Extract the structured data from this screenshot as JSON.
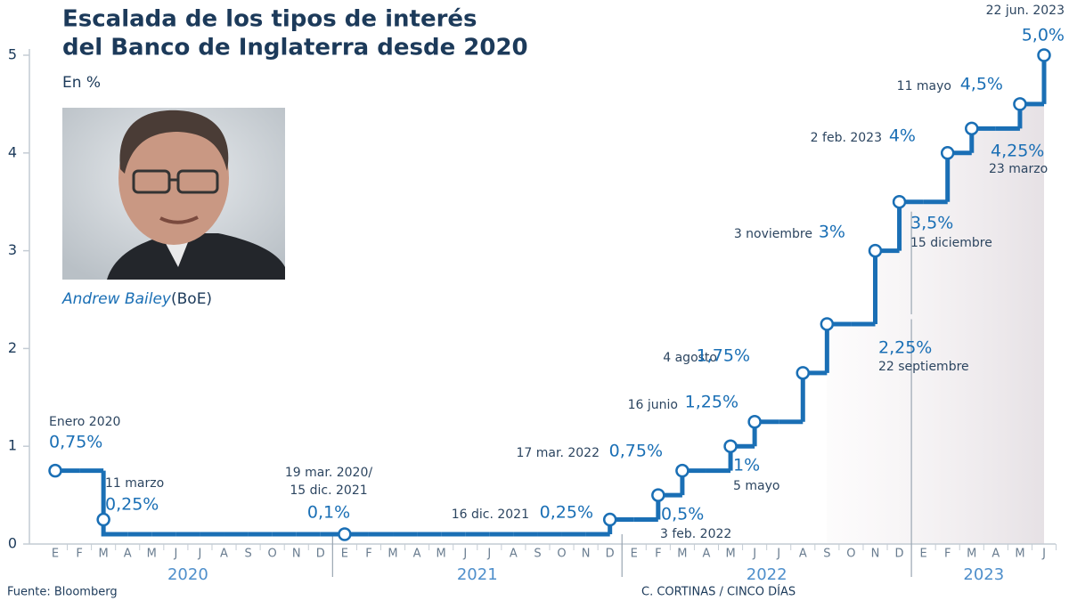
{
  "chart_data": {
    "type": "line",
    "step": true,
    "title": [
      "Escalada de los tipos de interés",
      "del Banco de Inglaterra desde 2020"
    ],
    "subtitle": "En %",
    "photo_caption": {
      "name": "Andrew Bailey",
      "org": "(BoE)"
    },
    "categories": [
      "E",
      "F",
      "M",
      "A",
      "M",
      "J",
      "J",
      "A",
      "S",
      "O",
      "N",
      "D",
      "E",
      "F",
      "M",
      "A",
      "M",
      "J",
      "J",
      "A",
      "S",
      "O",
      "N",
      "D",
      "E",
      "F",
      "M",
      "A",
      "M",
      "J",
      "J",
      "A",
      "S",
      "O",
      "N",
      "D",
      "E",
      "F",
      "M",
      "A",
      "M",
      "J"
    ],
    "years": [
      "2020",
      "2021",
      "2022",
      "2023"
    ],
    "color": "#1a6fb5",
    "values": [
      0.75,
      0.75,
      0.1,
      0.1,
      0.1,
      0.1,
      0.1,
      0.1,
      0.1,
      0.1,
      0.1,
      0.1,
      0.1,
      0.1,
      0.1,
      0.1,
      0.1,
      0.1,
      0.1,
      0.1,
      0.1,
      0.1,
      0.1,
      0.25,
      0.25,
      0.5,
      0.75,
      0.75,
      1,
      1.25,
      1.25,
      1.75,
      2.25,
      2.25,
      3,
      3.5,
      3.5,
      4,
      4.25,
      4.25,
      4.5,
      5
    ],
    "events": [
      {
        "date": [
          "Enero 2020"
        ],
        "value": 0.75,
        "label": "0,75%"
      },
      {
        "date": [
          "11 marzo"
        ],
        "value": 0.25,
        "label": "0,25%"
      },
      {
        "date": [
          "19 mar. 2020/",
          "15 dic. 2021"
        ],
        "value": 0.1,
        "label": "0,1%"
      },
      {
        "date": [
          "16 dic. 2021"
        ],
        "value": 0.25,
        "label": "0,25%"
      },
      {
        "date": [
          "3 feb. 2022"
        ],
        "value": 0.5,
        "label": "0,5%"
      },
      {
        "date": [
          "17 mar. 2022"
        ],
        "value": 0.75,
        "label": "0,75%"
      },
      {
        "date": [
          "5 mayo"
        ],
        "value": 1,
        "label": "1%"
      },
      {
        "date": [
          "16 junio"
        ],
        "value": 1.25,
        "label": "1,25%"
      },
      {
        "date": [
          "4 agosto"
        ],
        "value": 1.75,
        "label": "1,75%"
      },
      {
        "date": [
          "22 septiembre"
        ],
        "value": 2.25,
        "label": "2,25%"
      },
      {
        "date": [
          "3 noviembre"
        ],
        "value": 3,
        "label": "3%"
      },
      {
        "date": [
          "15 diciembre"
        ],
        "value": 3.5,
        "label": "3,5%"
      },
      {
        "date": [
          "2 feb. 2023"
        ],
        "value": 4,
        "label": "4%"
      },
      {
        "date": [
          "23 marzo"
        ],
        "value": 4.25,
        "label": "4,25%"
      },
      {
        "date": [
          "11 mayo"
        ],
        "value": 4.5,
        "label": "4,5%"
      },
      {
        "date": [
          "22 jun. 2023"
        ],
        "value": 5,
        "label": "5,0%"
      }
    ],
    "ylim": [
      0,
      5
    ],
    "yticks": [
      0,
      1,
      2,
      3,
      4,
      5
    ],
    "grid": false,
    "source": "Fuente: Bloomberg",
    "credit": "C. CORTINAS / CINCO DÍAS"
  }
}
